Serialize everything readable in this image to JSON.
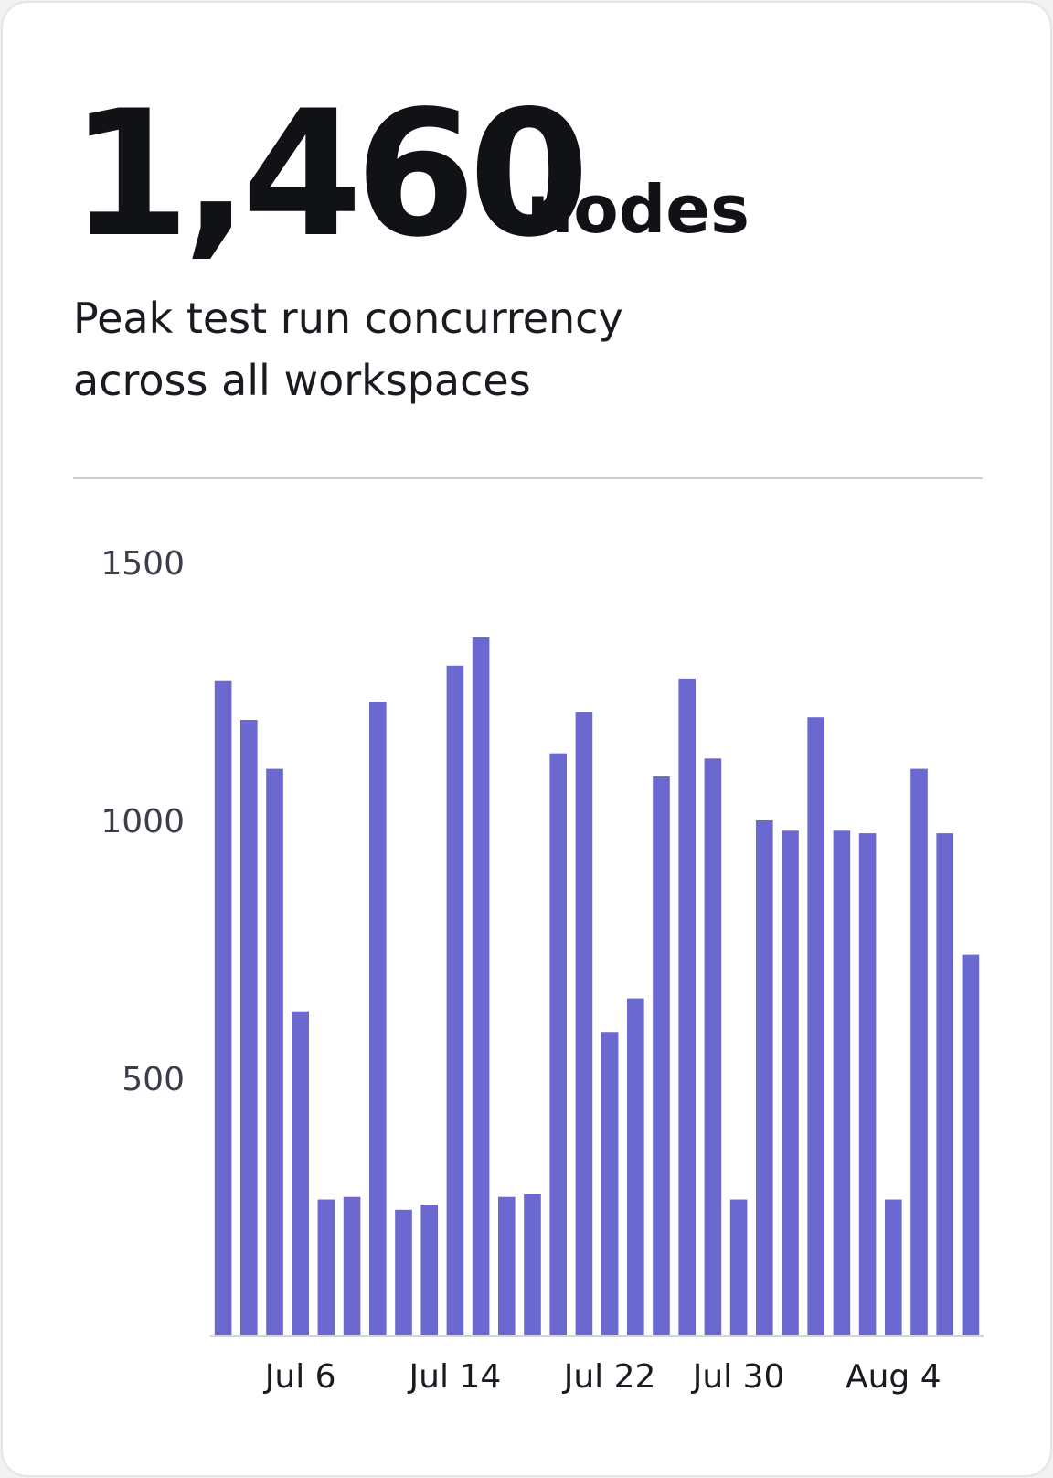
{
  "header": {
    "value": "1,460",
    "unit": "nodes",
    "subtitle": [
      "Peak test run concurrency",
      "across all workspaces"
    ]
  },
  "chart_data": {
    "type": "bar",
    "color": "#6b68cf",
    "categories": [
      null,
      null,
      null,
      "Jul 6",
      null,
      null,
      null,
      null,
      null,
      "Jul 14",
      null,
      null,
      null,
      null,
      null,
      "Jul 22",
      null,
      null,
      null,
      null,
      "Jul 30",
      null,
      null,
      null,
      null,
      null,
      "Aug 4",
      null,
      null,
      null
    ],
    "values": [
      1270,
      1195,
      1100,
      630,
      265,
      270,
      1230,
      245,
      255,
      1300,
      1355,
      270,
      275,
      1130,
      1210,
      590,
      655,
      1085,
      1275,
      1120,
      265,
      1000,
      980,
      1200,
      980,
      975,
      265,
      1100,
      975,
      740
    ],
    "ylim": [
      0,
      1500
    ],
    "yticks": [
      500,
      1000,
      1500
    ],
    "grid": false
  }
}
